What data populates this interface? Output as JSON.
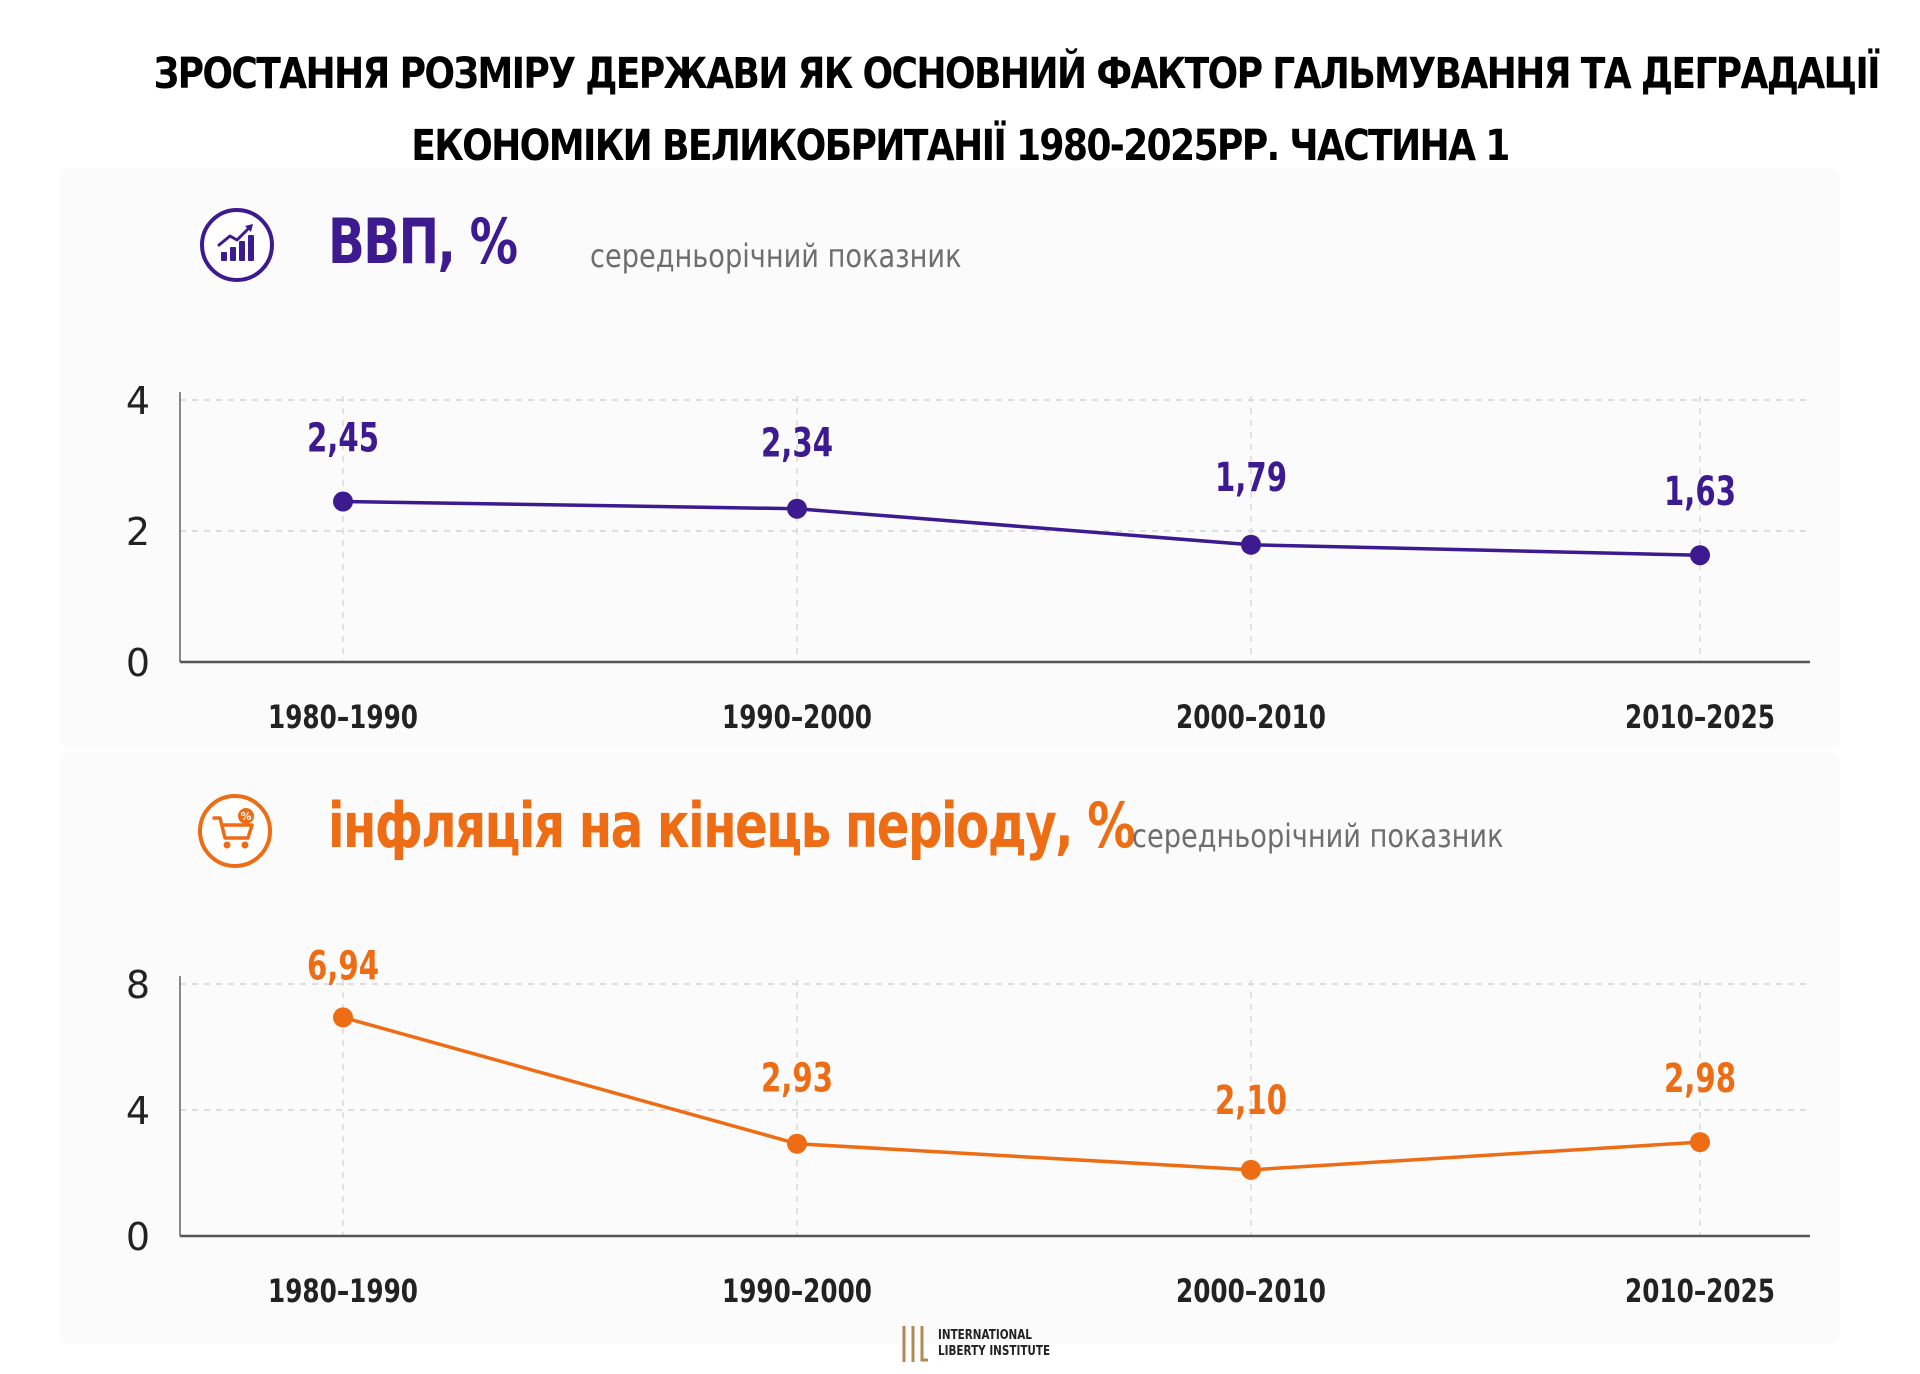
{
  "title": {
    "line1": "ЗРОСТАННЯ РОЗМІРУ ДЕРЖАВИ ЯК ОСНОВНИЙ ФАКТОР ГАЛЬМУВАННЯ ТА ДЕГРАДАЦІЇ",
    "line2": "ЕКОНОМІКИ ВЕЛИКОБРИТАНІЇ 1980-2025РР. ЧАСТИНА 1"
  },
  "sections": [
    {
      "title": "ВВП, %",
      "subtitle": "середньорічний показник",
      "icon": "growth-chart-icon",
      "color": "#3d1a8f"
    },
    {
      "title": "інфляція на кінець періоду, %",
      "subtitle": "середньорічний показник",
      "icon": "shopping-cart-percent-icon",
      "color": "#ee6c13"
    }
  ],
  "chart_data": [
    {
      "type": "line",
      "title": "ВВП, %",
      "subtitle": "середньорічний показник",
      "categories": [
        "1980–1990",
        "1990–2000",
        "2000–2010",
        "2010–2025"
      ],
      "values": [
        2.45,
        2.34,
        1.79,
        1.63
      ],
      "value_labels": [
        "2,45",
        "2,34",
        "1,79",
        "1,63"
      ],
      "yticks": [
        0,
        2,
        4
      ],
      "ytick_labels": [
        "0",
        "2",
        "4"
      ],
      "ylim": [
        0,
        4
      ],
      "grid": true,
      "color": "#3d1a8f"
    },
    {
      "type": "line",
      "title": "інфляція на кінець періоду, %",
      "subtitle": "середньорічний показник",
      "categories": [
        "1980–1990",
        "1990–2000",
        "2000–2010",
        "2010–2025"
      ],
      "values": [
        6.94,
        2.93,
        2.1,
        2.98
      ],
      "value_labels": [
        "6,94",
        "2,93",
        "2,10",
        "2,98"
      ],
      "yticks": [
        0,
        4,
        8
      ],
      "ytick_labels": [
        "0",
        "4",
        "8"
      ],
      "ylim": [
        0,
        8
      ],
      "grid": true,
      "color": "#ee6c13"
    }
  ],
  "footer": {
    "logo_mark": "ILI",
    "org_line1": "INTERNATIONAL",
    "org_line2": "LIBERTY INSTITUTE",
    "logo_color": "#b08a55"
  }
}
